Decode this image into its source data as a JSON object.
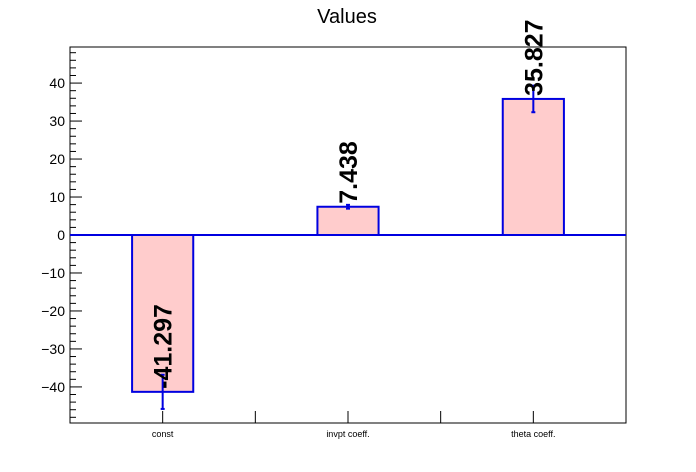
{
  "chart_data": {
    "type": "bar",
    "title": "Values",
    "categories": [
      "const",
      "invpt coeff.",
      "theta coeff."
    ],
    "values": [
      -41.297,
      7.438,
      35.827
    ],
    "errors": [
      4.5,
      0.5,
      3.5
    ],
    "value_labels": [
      "-41.297",
      "7.438",
      "35.827"
    ],
    "y_ticks": [
      -40,
      -30,
      -20,
      -10,
      0,
      10,
      20,
      30,
      40
    ],
    "y_tick_labels": [
      "−40",
      "−30",
      "−20",
      "−10",
      "0",
      "10",
      "20",
      "30",
      "40"
    ],
    "ylim": [
      -49.5,
      49.5
    ],
    "xlabel": "",
    "ylabel": "",
    "grid": false,
    "colors": {
      "bar_fill": "#ffcccc",
      "bar_edge": "#0000e0",
      "error_bar": "#0000e0",
      "zero_line": "#0000e0",
      "axis": "#000000"
    }
  }
}
